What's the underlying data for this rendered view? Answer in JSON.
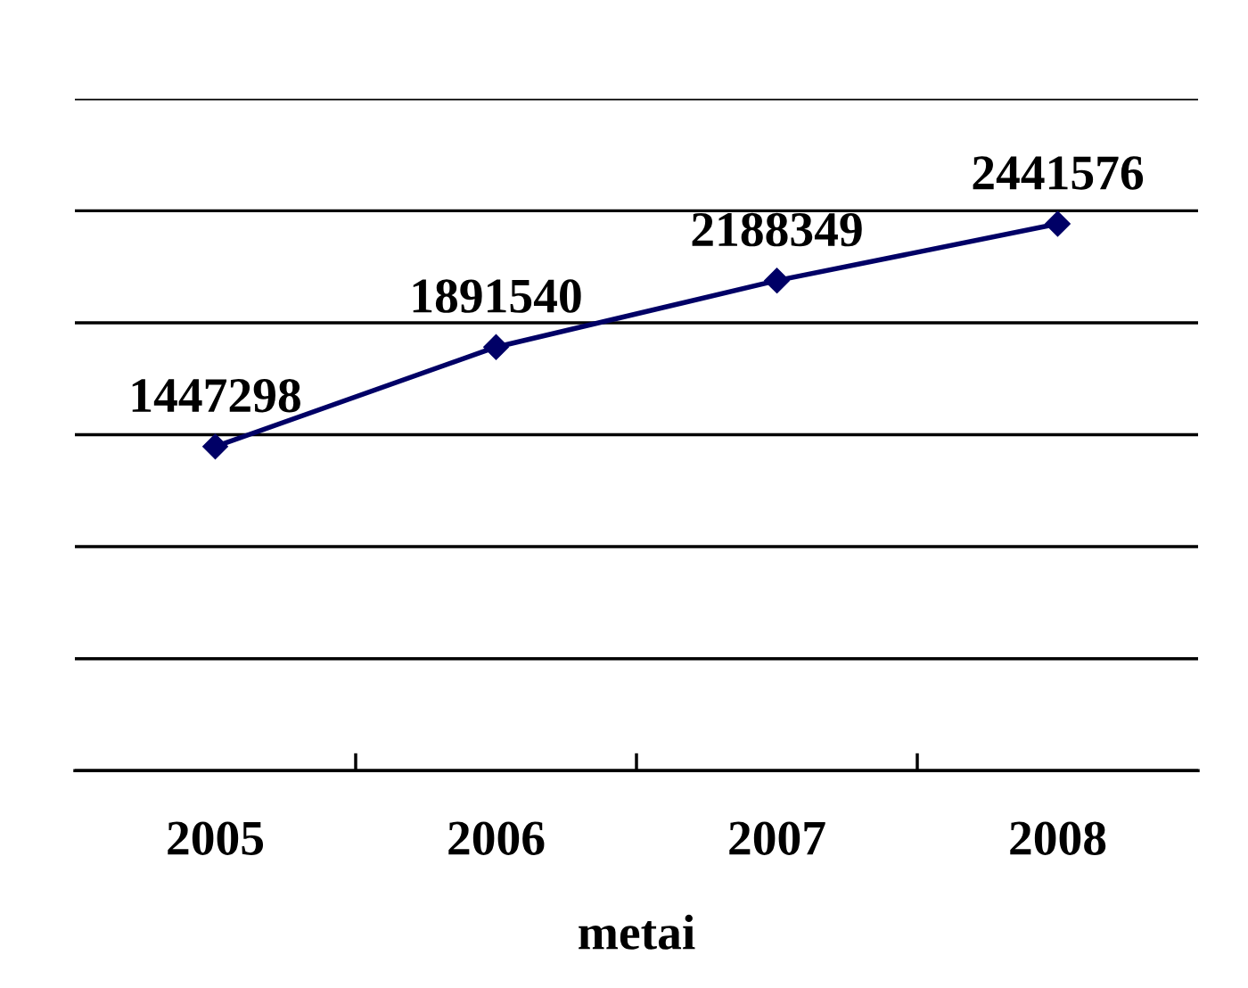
{
  "chart_data": {
    "type": "line",
    "xlabel": "metai",
    "categories": [
      "2005",
      "2006",
      "2007",
      "2008"
    ],
    "series": [
      {
        "color": "#000066",
        "values": [
          1447298,
          1891540,
          2188349,
          2441576
        ]
      }
    ],
    "ylim": [
      0,
      3000000
    ],
    "yticks": [
      {
        "value": 0,
        "label": null
      },
      {
        "value": 500000,
        "label": null
      },
      {
        "value": 1000000,
        "label": null
      },
      {
        "value": 1500000,
        "label": null
      },
      {
        "value": 2000000,
        "label": null
      },
      {
        "value": 2500000,
        "label": null
      },
      {
        "value": 3000000,
        "label": null
      }
    ],
    "tick_labels": "x",
    "grid": "y",
    "marker": "diamond",
    "line_style": "solid",
    "data_labels": true,
    "legend": false
  }
}
